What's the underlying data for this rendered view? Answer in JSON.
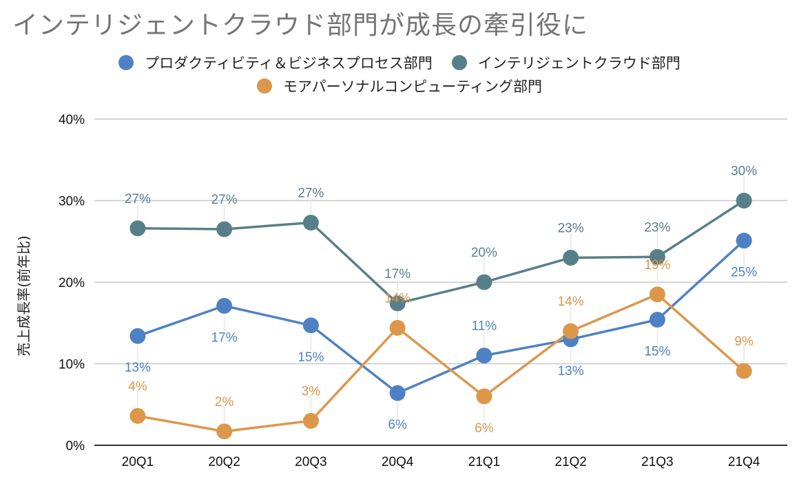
{
  "chart_data": {
    "type": "line",
    "title": "インテリジェントクラウド部門が成長の牽引役に",
    "xlabel": "",
    "ylabel": "売上成長率(前年比)",
    "ylim": [
      0,
      40
    ],
    "yticks": [
      0,
      10,
      20,
      30,
      40
    ],
    "ytick_labels": [
      "0%",
      "10%",
      "20%",
      "30%",
      "40%"
    ],
    "grid": true,
    "legend_position": "top-center",
    "categories": [
      "20Q1",
      "20Q2",
      "20Q3",
      "20Q4",
      "21Q1",
      "21Q2",
      "21Q3",
      "21Q4"
    ],
    "series": [
      {
        "name": "プロダクティビティ＆ビジネスプロセス部門",
        "color": "#4e81c4",
        "values": [
          13.4,
          17.1,
          14.7,
          6.4,
          11.0,
          13.0,
          15.4,
          25.1
        ],
        "labels": [
          "13%",
          "17%",
          "15%",
          "6%",
          "11%",
          "13%",
          "15%",
          "25%"
        ],
        "label_side": [
          "below",
          "below",
          "below",
          "below",
          "above",
          "below",
          "below",
          "below"
        ]
      },
      {
        "name": "インテリジェントクラウド部門",
        "color": "#577f89",
        "values": [
          26.6,
          26.5,
          27.3,
          17.4,
          20.0,
          23.0,
          23.1,
          30.0
        ],
        "labels": [
          "27%",
          "27%",
          "27%",
          "17%",
          "20%",
          "23%",
          "23%",
          "30%"
        ],
        "label_side": [
          "above",
          "above",
          "above",
          "above",
          "above",
          "above",
          "above",
          "above"
        ]
      },
      {
        "name": "モアパーソナルコンピューティング部門",
        "color": "#dc974b",
        "values": [
          3.6,
          1.7,
          3.0,
          14.4,
          6.0,
          14.0,
          18.5,
          9.1
        ],
        "labels": [
          "4%",
          "2%",
          "3%",
          "14%",
          "6%",
          "14%",
          "19%",
          "9%"
        ],
        "label_side": [
          "above",
          "above",
          "above",
          "above",
          "below",
          "above",
          "above",
          "above"
        ]
      }
    ]
  }
}
